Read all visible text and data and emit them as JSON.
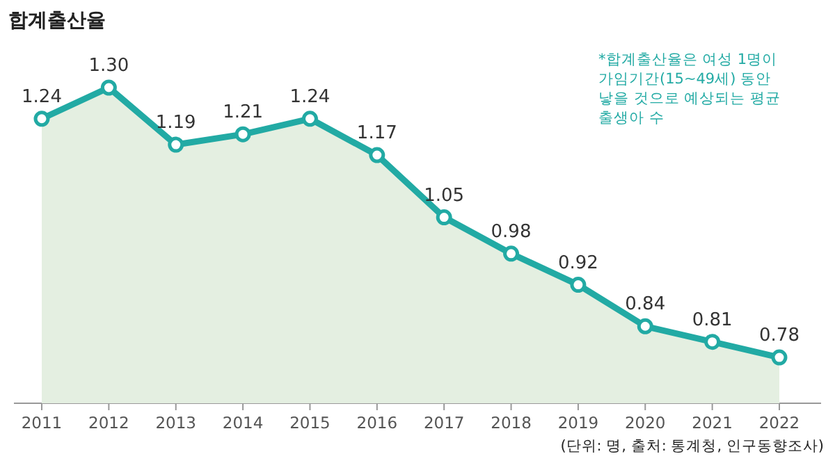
{
  "chart_data": {
    "type": "area",
    "title": "합계출산율",
    "categories": [
      "2011",
      "2012",
      "2013",
      "2014",
      "2015",
      "2016",
      "2017",
      "2018",
      "2019",
      "2020",
      "2021",
      "2022"
    ],
    "values": [
      1.24,
      1.3,
      1.19,
      1.21,
      1.24,
      1.17,
      1.05,
      0.98,
      0.92,
      0.84,
      0.81,
      0.78
    ],
    "value_labels": [
      "1.24",
      "1.30",
      "1.19",
      "1.21",
      "1.24",
      "1.17",
      "1.05",
      "0.98",
      "0.92",
      "0.84",
      "0.81",
      "0.78"
    ],
    "color": "#22aaa4",
    "marker": "circle",
    "annotations": [
      "*합계출산율은 여성 1명이 가임기간(15~49세) 동안 낳을 것으로 예상되는 평균 출생아 수",
      "(단위: 명, 출처: 통계청, 인구동향조사)"
    ]
  }
}
